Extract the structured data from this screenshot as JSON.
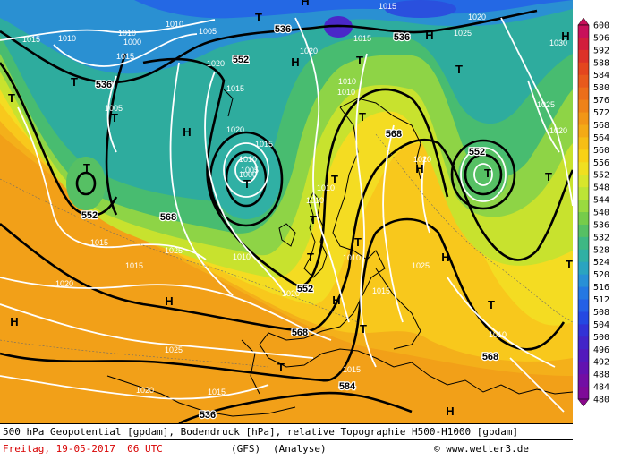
{
  "footer": {
    "title": "500 hPa Geopotential [gpdam], Bodendruck [hPa], relative Topographie H500-H1000 [gpdam]",
    "date": "Freitag, 19-05-2017  06 UTC",
    "model": "(GFS)",
    "analysis": "(Analyse)",
    "credit": "© www.wetter3.de"
  },
  "legend": {
    "values": [
      "600",
      "596",
      "592",
      "588",
      "584",
      "580",
      "576",
      "572",
      "568",
      "564",
      "560",
      "556",
      "552",
      "548",
      "544",
      "540",
      "536",
      "532",
      "528",
      "524",
      "520",
      "516",
      "512",
      "508",
      "504",
      "500",
      "496",
      "492",
      "488",
      "484",
      "480"
    ],
    "colors": [
      "#c8105a",
      "#d21e3c",
      "#dc3228",
      "#e4461e",
      "#e85a1c",
      "#ec6e1a",
      "#ef8218",
      "#f29617",
      "#f4aa16",
      "#f6be16",
      "#f8d216",
      "#f0e020",
      "#d8e62c",
      "#bce436",
      "#9ada40",
      "#76cc4a",
      "#56c064",
      "#3eb884",
      "#30b0a4",
      "#2aa4c0",
      "#2890d6",
      "#2478e2",
      "#2460e6",
      "#2448e2",
      "#3232d6",
      "#4224c8",
      "#5218bc",
      "#6212b0",
      "#720ea4",
      "#7e0a98",
      "#8a088c"
    ]
  },
  "map": {
    "colors": {
      "sea_deep": "#1c64e6",
      "coast": "#000000",
      "isobar": "#ffffff",
      "geopotential": "#000000"
    },
    "pressure_centers": [
      {
        "label": "T"
      },
      {
        "label": "T"
      },
      {
        "label": "T"
      },
      {
        "label": "T"
      },
      {
        "label": "T"
      },
      {
        "label": "T"
      },
      {
        "label": "T"
      },
      {
        "label": "T"
      },
      {
        "label": "T"
      },
      {
        "label": "T"
      },
      {
        "label": "T"
      },
      {
        "label": "T"
      },
      {
        "label": "T"
      },
      {
        "label": "T"
      },
      {
        "label": "T"
      },
      {
        "label": "T"
      },
      {
        "label": "T"
      },
      {
        "label": "T"
      },
      {
        "label": "T"
      },
      {
        "label": "H"
      },
      {
        "label": "H"
      },
      {
        "label": "H"
      },
      {
        "label": "H"
      },
      {
        "label": "H"
      },
      {
        "label": "H"
      },
      {
        "label": "H"
      },
      {
        "label": "H"
      },
      {
        "label": "H"
      },
      {
        "label": "H"
      },
      {
        "label": "H"
      }
    ],
    "isobar_labels": [
      "1010",
      "1010",
      "1015",
      "1005",
      "1000",
      "1010",
      "1015",
      "1020",
      "1015",
      "1020",
      "1025",
      "1015",
      "1020",
      "1005",
      "1010",
      "1015",
      "1020",
      "1010",
      "1010",
      "1015",
      "1020",
      "1025",
      "1020",
      "1025",
      "1020",
      "1015",
      "1015",
      "1015",
      "1010",
      "1010",
      "1025",
      "1020",
      "1010",
      "1010",
      "1015",
      "1020",
      "1025",
      "1030",
      "1000",
      "1005",
      "1010",
      "1015"
    ],
    "geopotential_labels": [
      "536",
      "536",
      "552",
      "536",
      "552",
      "568",
      "552",
      "568",
      "584",
      "568",
      "552",
      "568",
      "536"
    ]
  }
}
